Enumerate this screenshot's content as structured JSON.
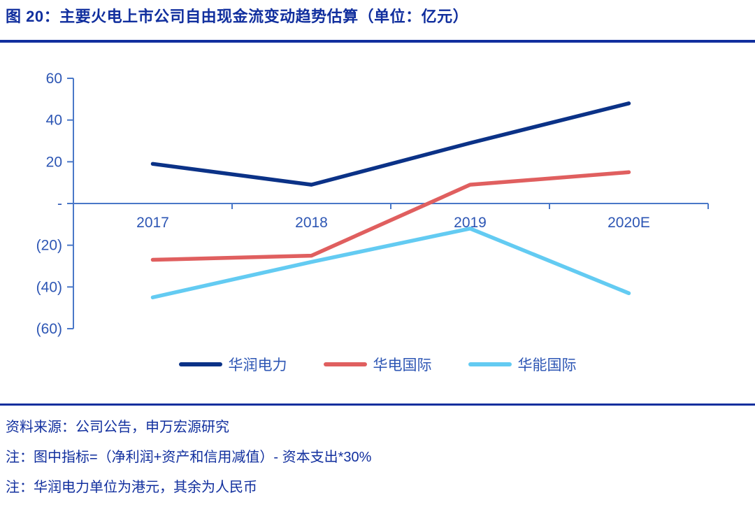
{
  "theme": {
    "navy": "#112f9e",
    "axis_color": "#4a78c8",
    "tick_label_color": "#2d56b4"
  },
  "header": {
    "title": "图 20：主要火电上市公司自由现金流变动趋势估算（单位：亿元）"
  },
  "chart_data": {
    "type": "line",
    "title": "主要火电上市公司自由现金流变动趋势估算",
    "unit": "亿元",
    "categories": [
      "2017",
      "2018",
      "2019",
      "2020E"
    ],
    "series": [
      {
        "name": "华润电力",
        "color": "#0b3287",
        "values": [
          19,
          9,
          29,
          48
        ]
      },
      {
        "name": "华电国际",
        "color": "#e05f5f",
        "values": [
          -27,
          -25,
          9,
          15
        ]
      },
      {
        "name": "华能国际",
        "color": "#63cbf2",
        "values": [
          -45,
          -28,
          -12,
          -43
        ]
      }
    ],
    "y_ticks": [
      {
        "value": 60,
        "label": "60"
      },
      {
        "value": 40,
        "label": "40"
      },
      {
        "value": 20,
        "label": "20"
      },
      {
        "value": 0,
        "label": "-"
      },
      {
        "value": -20,
        "label": "(20)"
      },
      {
        "value": -40,
        "label": "(40)"
      },
      {
        "value": -60,
        "label": "(60)"
      }
    ],
    "ylim": [
      -60,
      60
    ],
    "grid": false,
    "legend_position": "bottom"
  },
  "footer": {
    "source": "资料来源：公司公告，申万宏源研究",
    "note1": "注：图中指标=（净利润+资产和信用减值）- 资本支出*30%",
    "note2": "注：华润电力单位为港元，其余为人民币"
  }
}
